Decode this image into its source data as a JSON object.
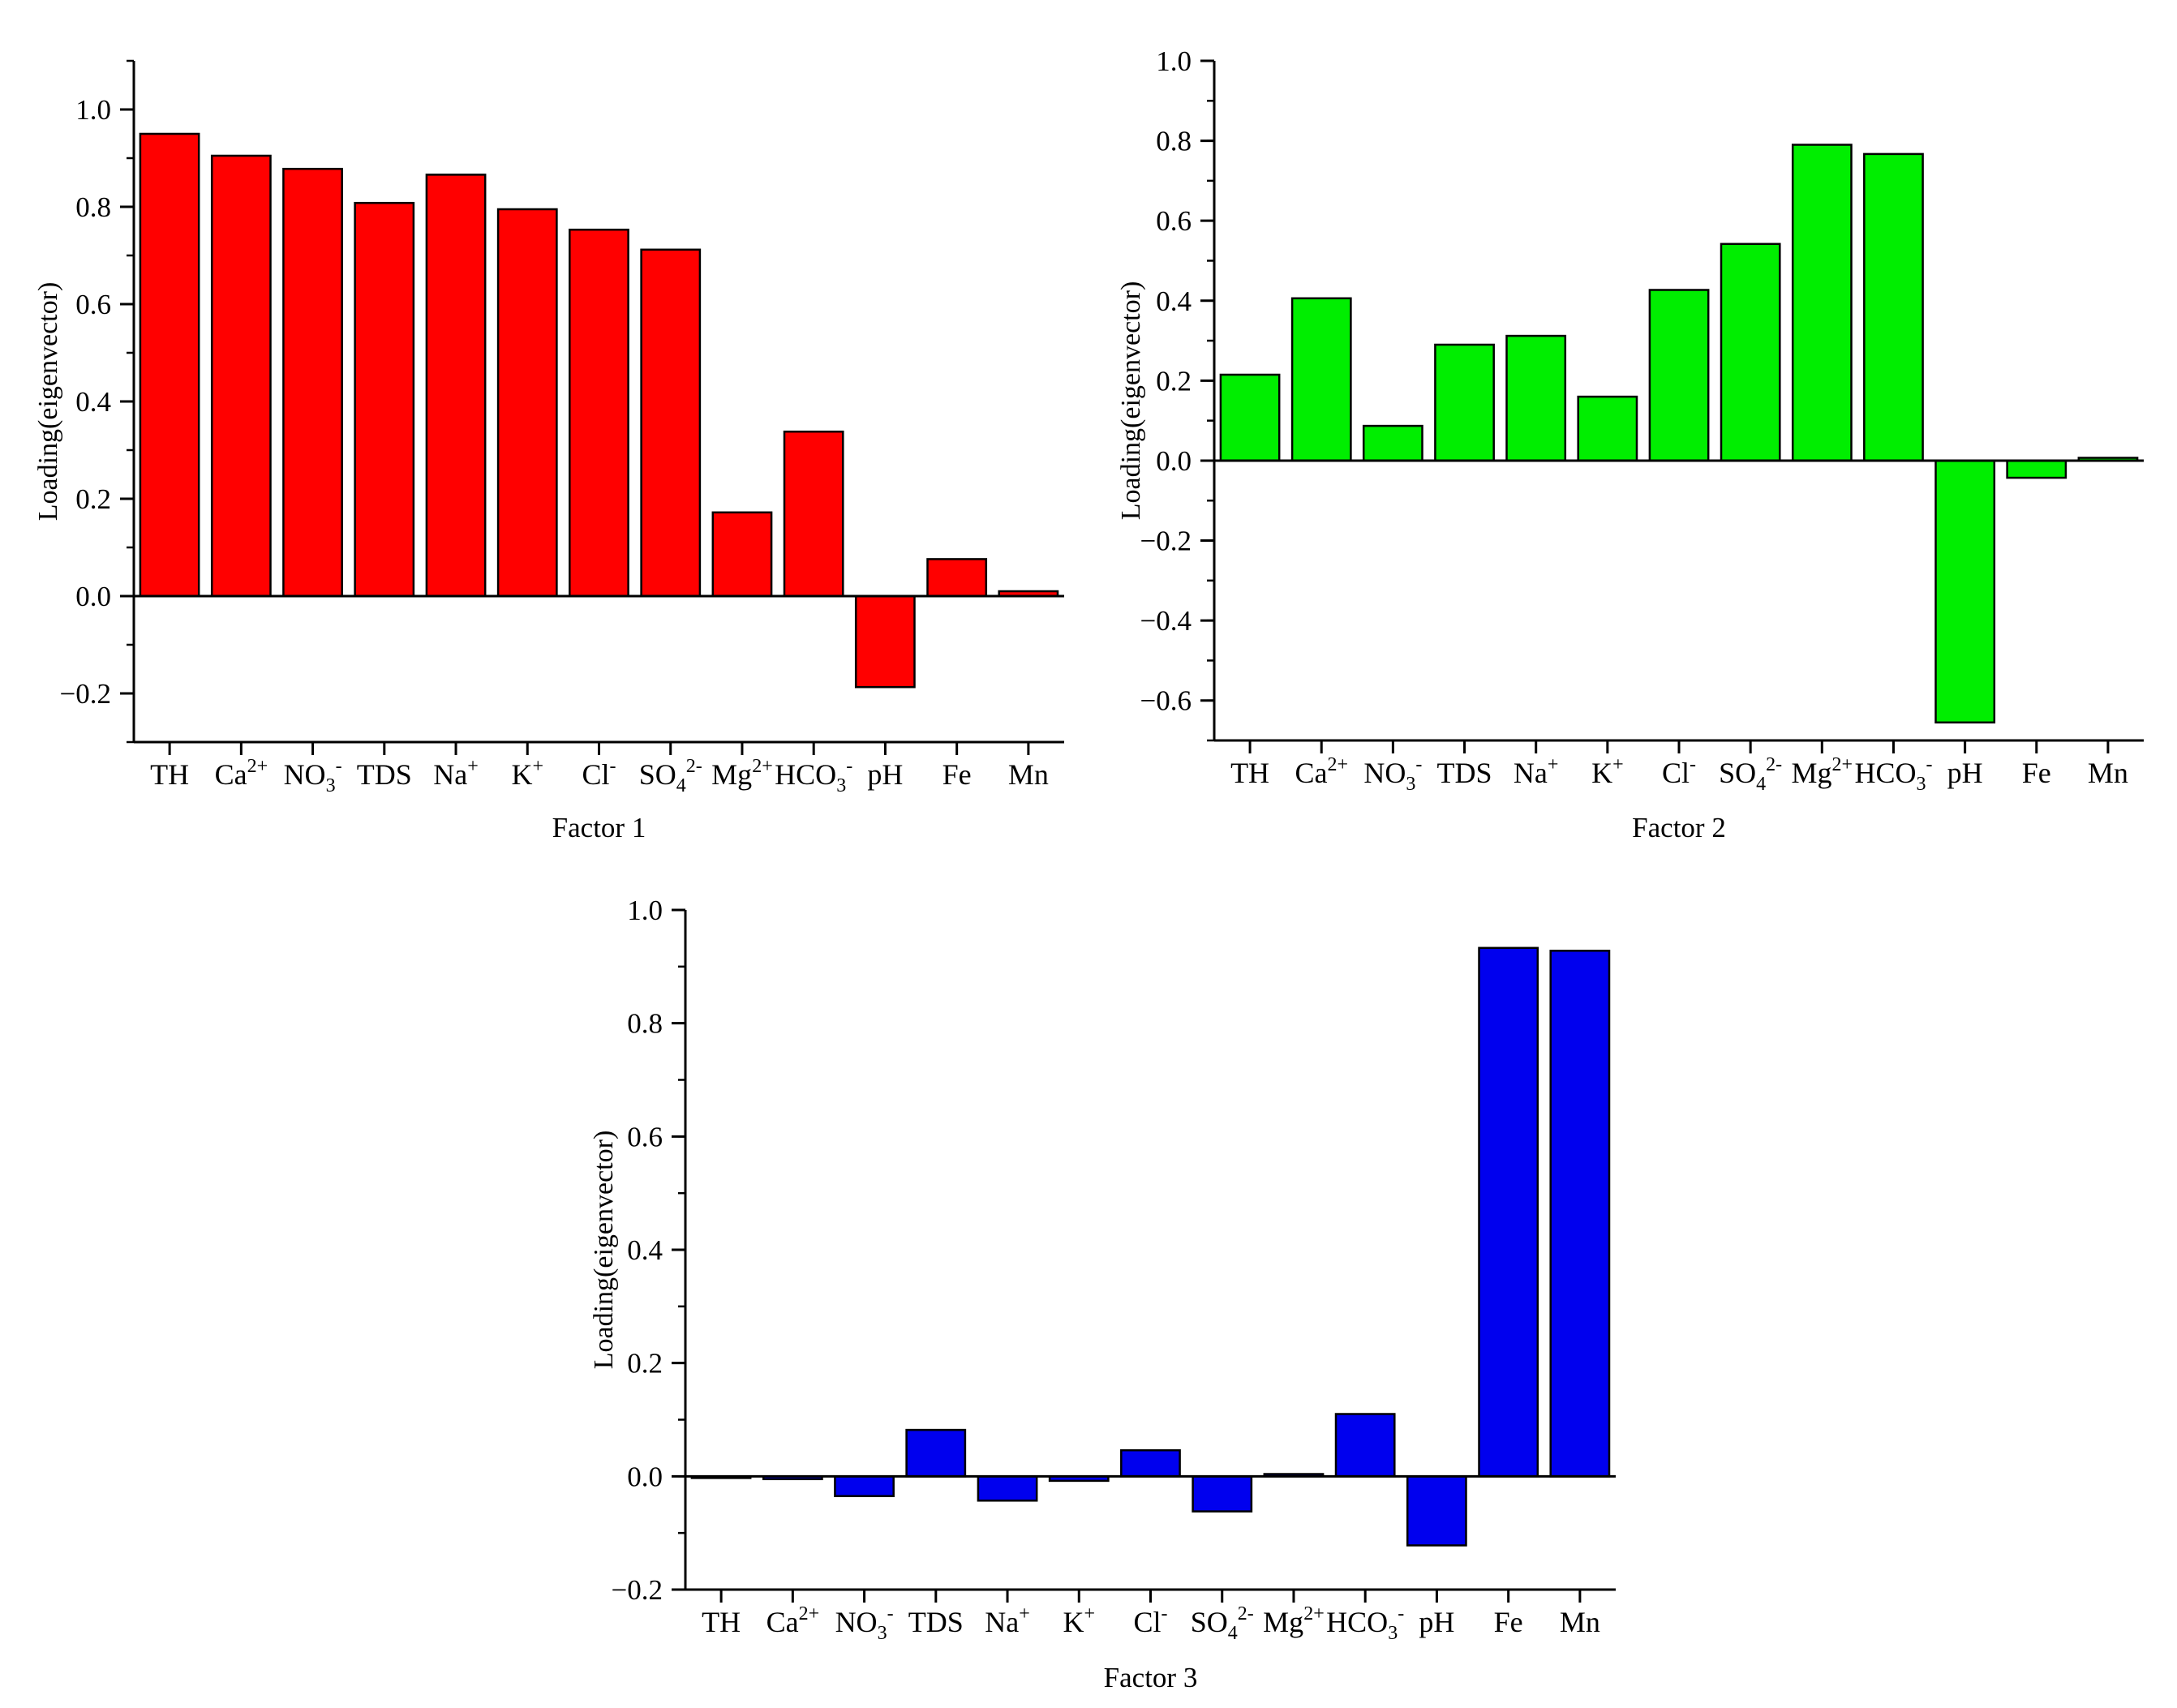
{
  "chart_data": [
    {
      "type": "bar",
      "title": "",
      "xlabel": "Factor 1",
      "ylabel": "Loading(eigenvector)",
      "ylim": [
        -0.3,
        1.1
      ],
      "yticks": [
        -0.2,
        0.0,
        0.2,
        0.4,
        0.6,
        0.8,
        1.0
      ],
      "ytick_labels": [
        "−0.2",
        "0.0",
        "0.2",
        "0.4",
        "0.6",
        "0.8",
        "1.0"
      ],
      "color": "#ff0000",
      "categories": [
        {
          "base": "TH"
        },
        {
          "base": "Ca",
          "sup": "2+"
        },
        {
          "base": "NO",
          "sub": "3",
          "sup": "-"
        },
        {
          "base": "TDS"
        },
        {
          "base": "Na",
          "sup": "+"
        },
        {
          "base": "K",
          "sup": "+"
        },
        {
          "base": "Cl",
          "sup": "-"
        },
        {
          "base": "SO",
          "sub": "4",
          "sup": "2-"
        },
        {
          "base": "Mg",
          "sup": "2+"
        },
        {
          "base": "HCO",
          "sub": "3",
          "sup": "-"
        },
        {
          "base": "pH"
        },
        {
          "base": "Fe"
        },
        {
          "base": "Mn"
        }
      ],
      "values": [
        0.95,
        0.905,
        0.878,
        0.808,
        0.866,
        0.795,
        0.753,
        0.712,
        0.172,
        0.338,
        -0.187,
        0.076,
        0.01
      ]
    },
    {
      "type": "bar",
      "title": "",
      "xlabel": "Factor 2",
      "ylabel": "Loading(eigenvector)",
      "ylim": [
        -0.7,
        1.0
      ],
      "yticks": [
        -0.6,
        -0.4,
        -0.2,
        0.0,
        0.2,
        0.4,
        0.6,
        0.8,
        1.0
      ],
      "ytick_labels": [
        "−0.6",
        "−0.4",
        "−0.2",
        "0.0",
        "0.2",
        "0.4",
        "0.6",
        "0.8",
        "1.0"
      ],
      "color": "#00ee00",
      "categories": [
        {
          "base": "TH"
        },
        {
          "base": "Ca",
          "sup": "2+"
        },
        {
          "base": "NO",
          "sub": "3",
          "sup": "-"
        },
        {
          "base": "TDS"
        },
        {
          "base": "Na",
          "sup": "+"
        },
        {
          "base": "K",
          "sup": "+"
        },
        {
          "base": "Cl",
          "sup": "-"
        },
        {
          "base": "SO",
          "sub": "4",
          "sup": "2-"
        },
        {
          "base": "Mg",
          "sup": "2+"
        },
        {
          "base": "HCO",
          "sub": "3",
          "sup": "-"
        },
        {
          "base": "pH"
        },
        {
          "base": "Fe"
        },
        {
          "base": "Mn"
        }
      ],
      "values": [
        0.215,
        0.406,
        0.087,
        0.29,
        0.312,
        0.16,
        0.427,
        0.542,
        0.79,
        0.767,
        -0.655,
        -0.043,
        0.007
      ]
    },
    {
      "type": "bar",
      "title": "",
      "xlabel": "Factor 3",
      "ylabel": "Loading(eigenvector)",
      "ylim": [
        -0.2,
        1.0
      ],
      "yticks": [
        -0.2,
        0.0,
        0.2,
        0.4,
        0.6,
        0.8,
        1.0
      ],
      "ytick_labels": [
        "−0.2",
        "0.0",
        "0.2",
        "0.4",
        "0.6",
        "0.8",
        "1.0"
      ],
      "color": "#0000ee",
      "categories": [
        {
          "base": "TH"
        },
        {
          "base": "Ca",
          "sup": "2+"
        },
        {
          "base": "NO",
          "sub": "3",
          "sup": "-"
        },
        {
          "base": "TDS"
        },
        {
          "base": "Na",
          "sup": "+"
        },
        {
          "base": "K",
          "sup": "+"
        },
        {
          "base": "Cl",
          "sup": "-"
        },
        {
          "base": "SO",
          "sub": "4",
          "sup": "2-"
        },
        {
          "base": "Mg",
          "sup": "2+"
        },
        {
          "base": "HCO",
          "sub": "3",
          "sup": "-"
        },
        {
          "base": "pH"
        },
        {
          "base": "Fe"
        },
        {
          "base": "Mn"
        }
      ],
      "values": [
        -0.003,
        -0.005,
        -0.035,
        0.082,
        -0.043,
        -0.008,
        0.046,
        -0.062,
        0.004,
        0.11,
        -0.122,
        0.933,
        0.928
      ]
    }
  ]
}
